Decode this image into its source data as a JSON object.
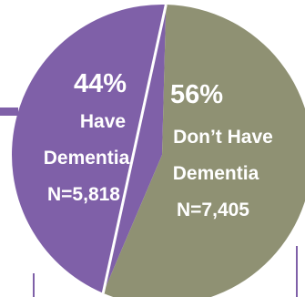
{
  "chart_data": {
    "type": "pie",
    "slices": [
      {
        "name": "Have Dementia",
        "percent": 44,
        "n_label": "N=5,818",
        "lines": [
          "44%",
          "Have",
          "Dementia",
          "N=5,818"
        ],
        "color": "#7f60a8",
        "label_color": "#ffffff",
        "pct_color": "#ffffff"
      },
      {
        "name": "Don't Have Dementia",
        "percent": 56,
        "n_label": "N=7,405",
        "lines": [
          "56%",
          "Don’t Have",
          "Dementia",
          "N=7,405"
        ],
        "color": "#8f9173",
        "label_color": "#ffffff",
        "pct_color": "#ffffff"
      }
    ],
    "accent_colors": {
      "connector": "#7f60a8",
      "separator": "#ffffff"
    }
  }
}
